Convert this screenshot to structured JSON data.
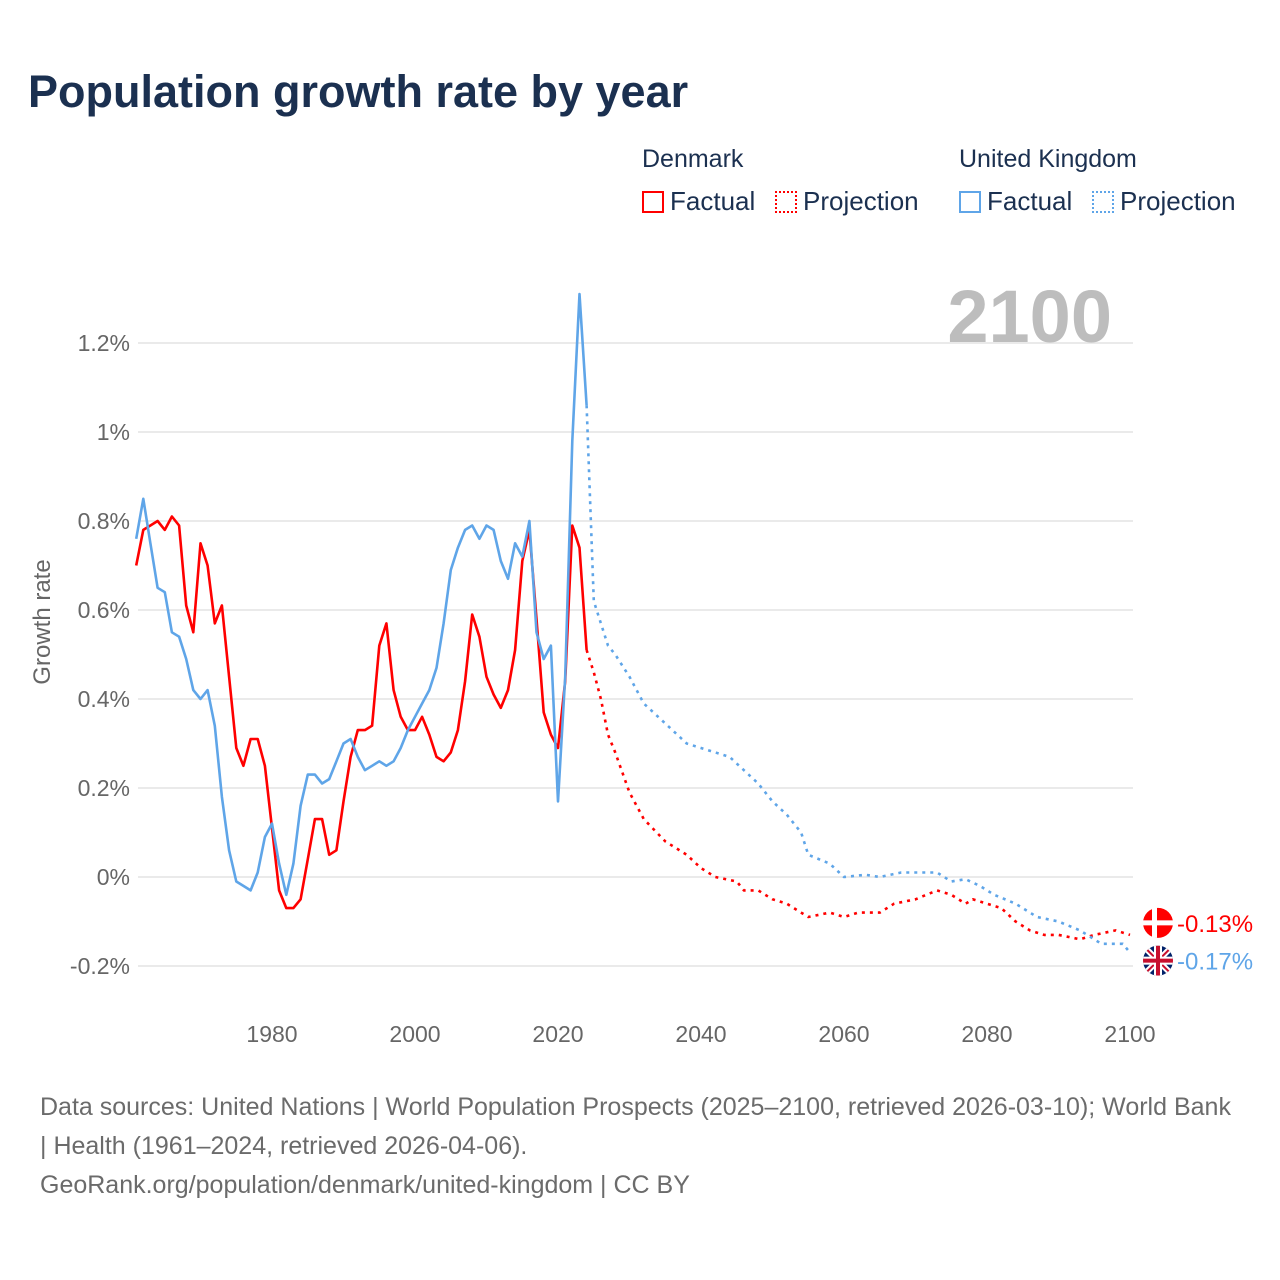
{
  "title": "Population growth rate by year",
  "legend": {
    "groups": [
      {
        "name": "Denmark",
        "factual": "Factual",
        "projection": "Projection",
        "color": "#ff0000"
      },
      {
        "name": "United Kingdom",
        "factual": "Factual",
        "projection": "Projection",
        "color": "#5fa5e8"
      }
    ]
  },
  "footer": {
    "sources": "Data sources: United Nations | World Population Prospects (2025–2100, retrieved 2026-03-10); World Bank | Health (1961–2024, retrieved 2026-04-06).",
    "credit": "GeoRank.org/population/denmark/united-kingdom | CC BY"
  },
  "chart_data": {
    "type": "line",
    "title": "Population growth rate by year",
    "ylabel": "Growth rate",
    "xlabel": "",
    "year_label": "2100",
    "xlim": [
      1961,
      2100
    ],
    "ylim": [
      -0.3,
      1.35
    ],
    "x_ticks": [
      1980,
      2000,
      2020,
      2040,
      2060,
      2080,
      2100
    ],
    "x_tick_labels": [
      "1980",
      "2000",
      "2020",
      "2040",
      "2060",
      "2080",
      "2100"
    ],
    "y_ticks": [
      -0.2,
      0,
      0.2,
      0.4,
      0.6,
      0.8,
      1,
      1.2
    ],
    "y_tick_labels": [
      "-0.2%",
      "0%",
      "0.2%",
      "0.4%",
      "0.6%",
      "0.8%",
      "1%",
      "1.2%"
    ],
    "grid": true,
    "legend_position": "top-right",
    "series": [
      {
        "name": "Denmark",
        "kind": "factual",
        "color": "#ff0000",
        "x": [
          1961,
          1962,
          1963,
          1964,
          1965,
          1966,
          1967,
          1968,
          1969,
          1970,
          1971,
          1972,
          1973,
          1974,
          1975,
          1976,
          1977,
          1978,
          1979,
          1980,
          1981,
          1982,
          1983,
          1984,
          1985,
          1986,
          1987,
          1988,
          1989,
          1990,
          1991,
          1992,
          1993,
          1994,
          1995,
          1996,
          1997,
          1998,
          1999,
          2000,
          2001,
          2002,
          2003,
          2004,
          2005,
          2006,
          2007,
          2008,
          2009,
          2010,
          2011,
          2012,
          2013,
          2014,
          2015,
          2016,
          2017,
          2018,
          2019,
          2020,
          2021,
          2022,
          2023,
          2024
        ],
        "y": [
          0.7,
          0.78,
          0.79,
          0.8,
          0.78,
          0.81,
          0.79,
          0.61,
          0.55,
          0.75,
          0.7,
          0.57,
          0.61,
          0.45,
          0.29,
          0.25,
          0.31,
          0.31,
          0.25,
          0.11,
          -0.03,
          -0.07,
          -0.07,
          -0.05,
          0.04,
          0.13,
          0.13,
          0.05,
          0.06,
          0.17,
          0.27,
          0.33,
          0.33,
          0.34,
          0.52,
          0.57,
          0.42,
          0.36,
          0.33,
          0.33,
          0.36,
          0.32,
          0.27,
          0.26,
          0.28,
          0.33,
          0.44,
          0.59,
          0.54,
          0.45,
          0.41,
          0.38,
          0.42,
          0.51,
          0.71,
          0.78,
          0.58,
          0.37,
          0.32,
          0.29,
          0.44,
          0.79,
          0.74,
          0.51
        ]
      },
      {
        "name": "Denmark",
        "kind": "projection",
        "color": "#ff0000",
        "x": [
          2024,
          2025,
          2026,
          2027,
          2028,
          2030,
          2032,
          2035,
          2038,
          2040,
          2042,
          2045,
          2046,
          2048,
          2050,
          2052,
          2054,
          2055,
          2058,
          2060,
          2062,
          2065,
          2067,
          2070,
          2073,
          2075,
          2077,
          2078,
          2080,
          2082,
          2084,
          2086,
          2088,
          2090,
          2093,
          2095,
          2098,
          2100
        ],
        "y": [
          0.51,
          0.46,
          0.4,
          0.32,
          0.28,
          0.19,
          0.13,
          0.08,
          0.05,
          0.02,
          0.0,
          -0.01,
          -0.03,
          -0.03,
          -0.05,
          -0.06,
          -0.08,
          -0.09,
          -0.08,
          -0.09,
          -0.08,
          -0.08,
          -0.06,
          -0.05,
          -0.03,
          -0.04,
          -0.06,
          -0.05,
          -0.06,
          -0.07,
          -0.1,
          -0.12,
          -0.13,
          -0.13,
          -0.14,
          -0.13,
          -0.12,
          -0.13
        ]
      },
      {
        "name": "United Kingdom",
        "kind": "factual",
        "color": "#5fa5e8",
        "x": [
          1961,
          1962,
          1963,
          1964,
          1965,
          1966,
          1967,
          1968,
          1969,
          1970,
          1971,
          1972,
          1973,
          1974,
          1975,
          1976,
          1977,
          1978,
          1979,
          1980,
          1981,
          1982,
          1983,
          1984,
          1985,
          1986,
          1987,
          1988,
          1989,
          1990,
          1991,
          1992,
          1993,
          1994,
          1995,
          1996,
          1997,
          1998,
          1999,
          2000,
          2001,
          2002,
          2003,
          2004,
          2005,
          2006,
          2007,
          2008,
          2009,
          2010,
          2011,
          2012,
          2013,
          2014,
          2015,
          2016,
          2017,
          2018,
          2019,
          2020,
          2021,
          2022,
          2023,
          2024
        ],
        "y": [
          0.76,
          0.85,
          0.75,
          0.65,
          0.64,
          0.55,
          0.54,
          0.49,
          0.42,
          0.4,
          0.42,
          0.34,
          0.18,
          0.06,
          -0.01,
          -0.02,
          -0.03,
          0.01,
          0.09,
          0.12,
          0.03,
          -0.04,
          0.03,
          0.16,
          0.23,
          0.23,
          0.21,
          0.22,
          0.26,
          0.3,
          0.31,
          0.27,
          0.24,
          0.25,
          0.26,
          0.25,
          0.26,
          0.29,
          0.33,
          0.36,
          0.39,
          0.42,
          0.47,
          0.57,
          0.69,
          0.74,
          0.78,
          0.79,
          0.76,
          0.79,
          0.78,
          0.71,
          0.67,
          0.75,
          0.72,
          0.8,
          0.55,
          0.49,
          0.52,
          0.17,
          0.45,
          0.98,
          1.31,
          1.06
        ]
      },
      {
        "name": "United Kingdom",
        "kind": "projection",
        "color": "#5fa5e8",
        "x": [
          2024,
          2025,
          2026,
          2027,
          2028,
          2030,
          2032,
          2034,
          2036,
          2038,
          2040,
          2042,
          2044,
          2046,
          2048,
          2050,
          2052,
          2054,
          2055,
          2058,
          2060,
          2063,
          2065,
          2068,
          2070,
          2073,
          2075,
          2077,
          2079,
          2081,
          2084,
          2087,
          2090,
          2093,
          2096,
          2099,
          2100
        ],
        "y": [
          1.06,
          0.62,
          0.57,
          0.52,
          0.5,
          0.45,
          0.39,
          0.36,
          0.33,
          0.3,
          0.29,
          0.28,
          0.27,
          0.24,
          0.21,
          0.17,
          0.14,
          0.1,
          0.05,
          0.03,
          0.0,
          0.005,
          0.0,
          0.01,
          0.01,
          0.01,
          -0.01,
          -0.005,
          -0.02,
          -0.04,
          -0.06,
          -0.09,
          -0.1,
          -0.12,
          -0.15,
          -0.15,
          -0.17
        ]
      }
    ],
    "end_labels": [
      {
        "country": "Denmark",
        "flag": "denmark-flag",
        "value": -0.13,
        "label": "-0.13%",
        "color": "#ff0000"
      },
      {
        "country": "United Kingdom",
        "flag": "uk-flag",
        "value": -0.17,
        "label": "-0.17%",
        "color": "#5fa5e8"
      }
    ]
  }
}
